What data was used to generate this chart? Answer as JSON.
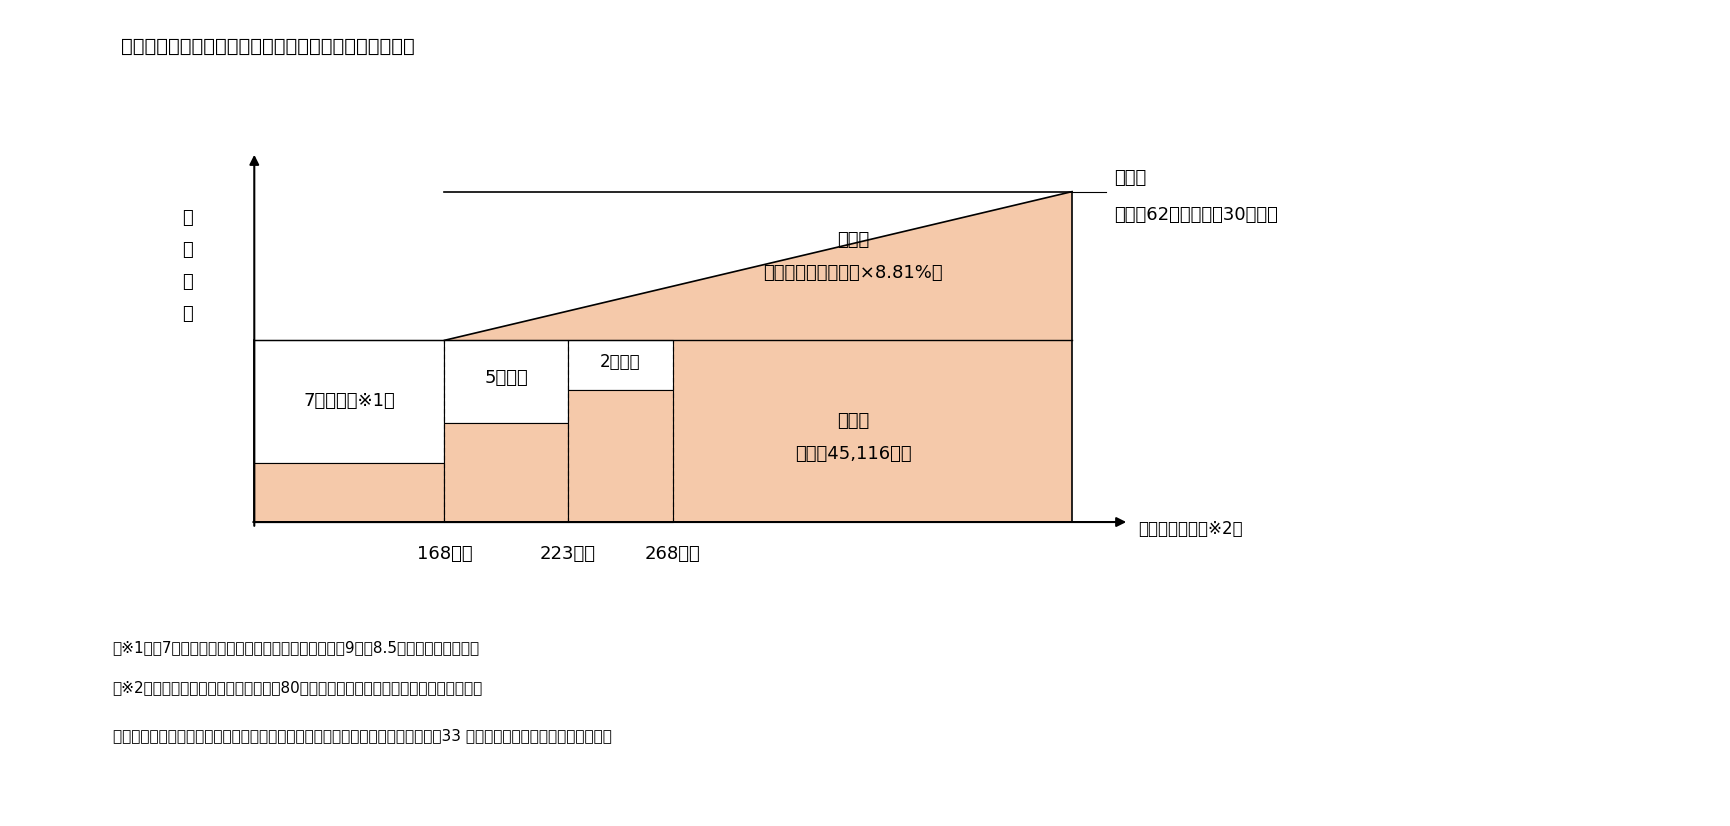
{
  "title": "後期高齢者医療の保険料額（厚生労働省の資料による）",
  "xlabel": "夫の年金収入（※2）",
  "ylabel": "保\n険\n料\n額",
  "x_labels": [
    "168万円",
    "223万円",
    "268万円"
  ],
  "background_color": "#ffffff",
  "salmon_color": "#f5c9aa",
  "white_color": "#ffffff",
  "border_color": "#000000",
  "footnotes": [
    "（※1）　7割軽減の対象者には、更に国費を投入し、9割、8.5割軽減としている。",
    "（※2）　夫婦二人世帯で妻の年金収入80万円以下の場合における、夫の年金収入額。"
  ],
  "note": "（筆者注）図表中の、「旧ただし書き所得」とは、総所得金額等から基礎控除（33 万円）を差し引いた額となります。",
  "label_nana_wari": "7割軽減（※1）",
  "label_go_wari": "5割軽減",
  "label_ni_wari": "2割軽減",
  "label_shotoku_line1": "所得割",
  "label_shotoku_line2": "（旧ただし書き所得×8.81%）",
  "label_kinto_line1": "均等割",
  "label_kinto_line2": "（年額45,116円）",
  "label_gendo_line1": "限度額",
  "label_gendo_line2": "　年額62万円（平成30年度）"
}
